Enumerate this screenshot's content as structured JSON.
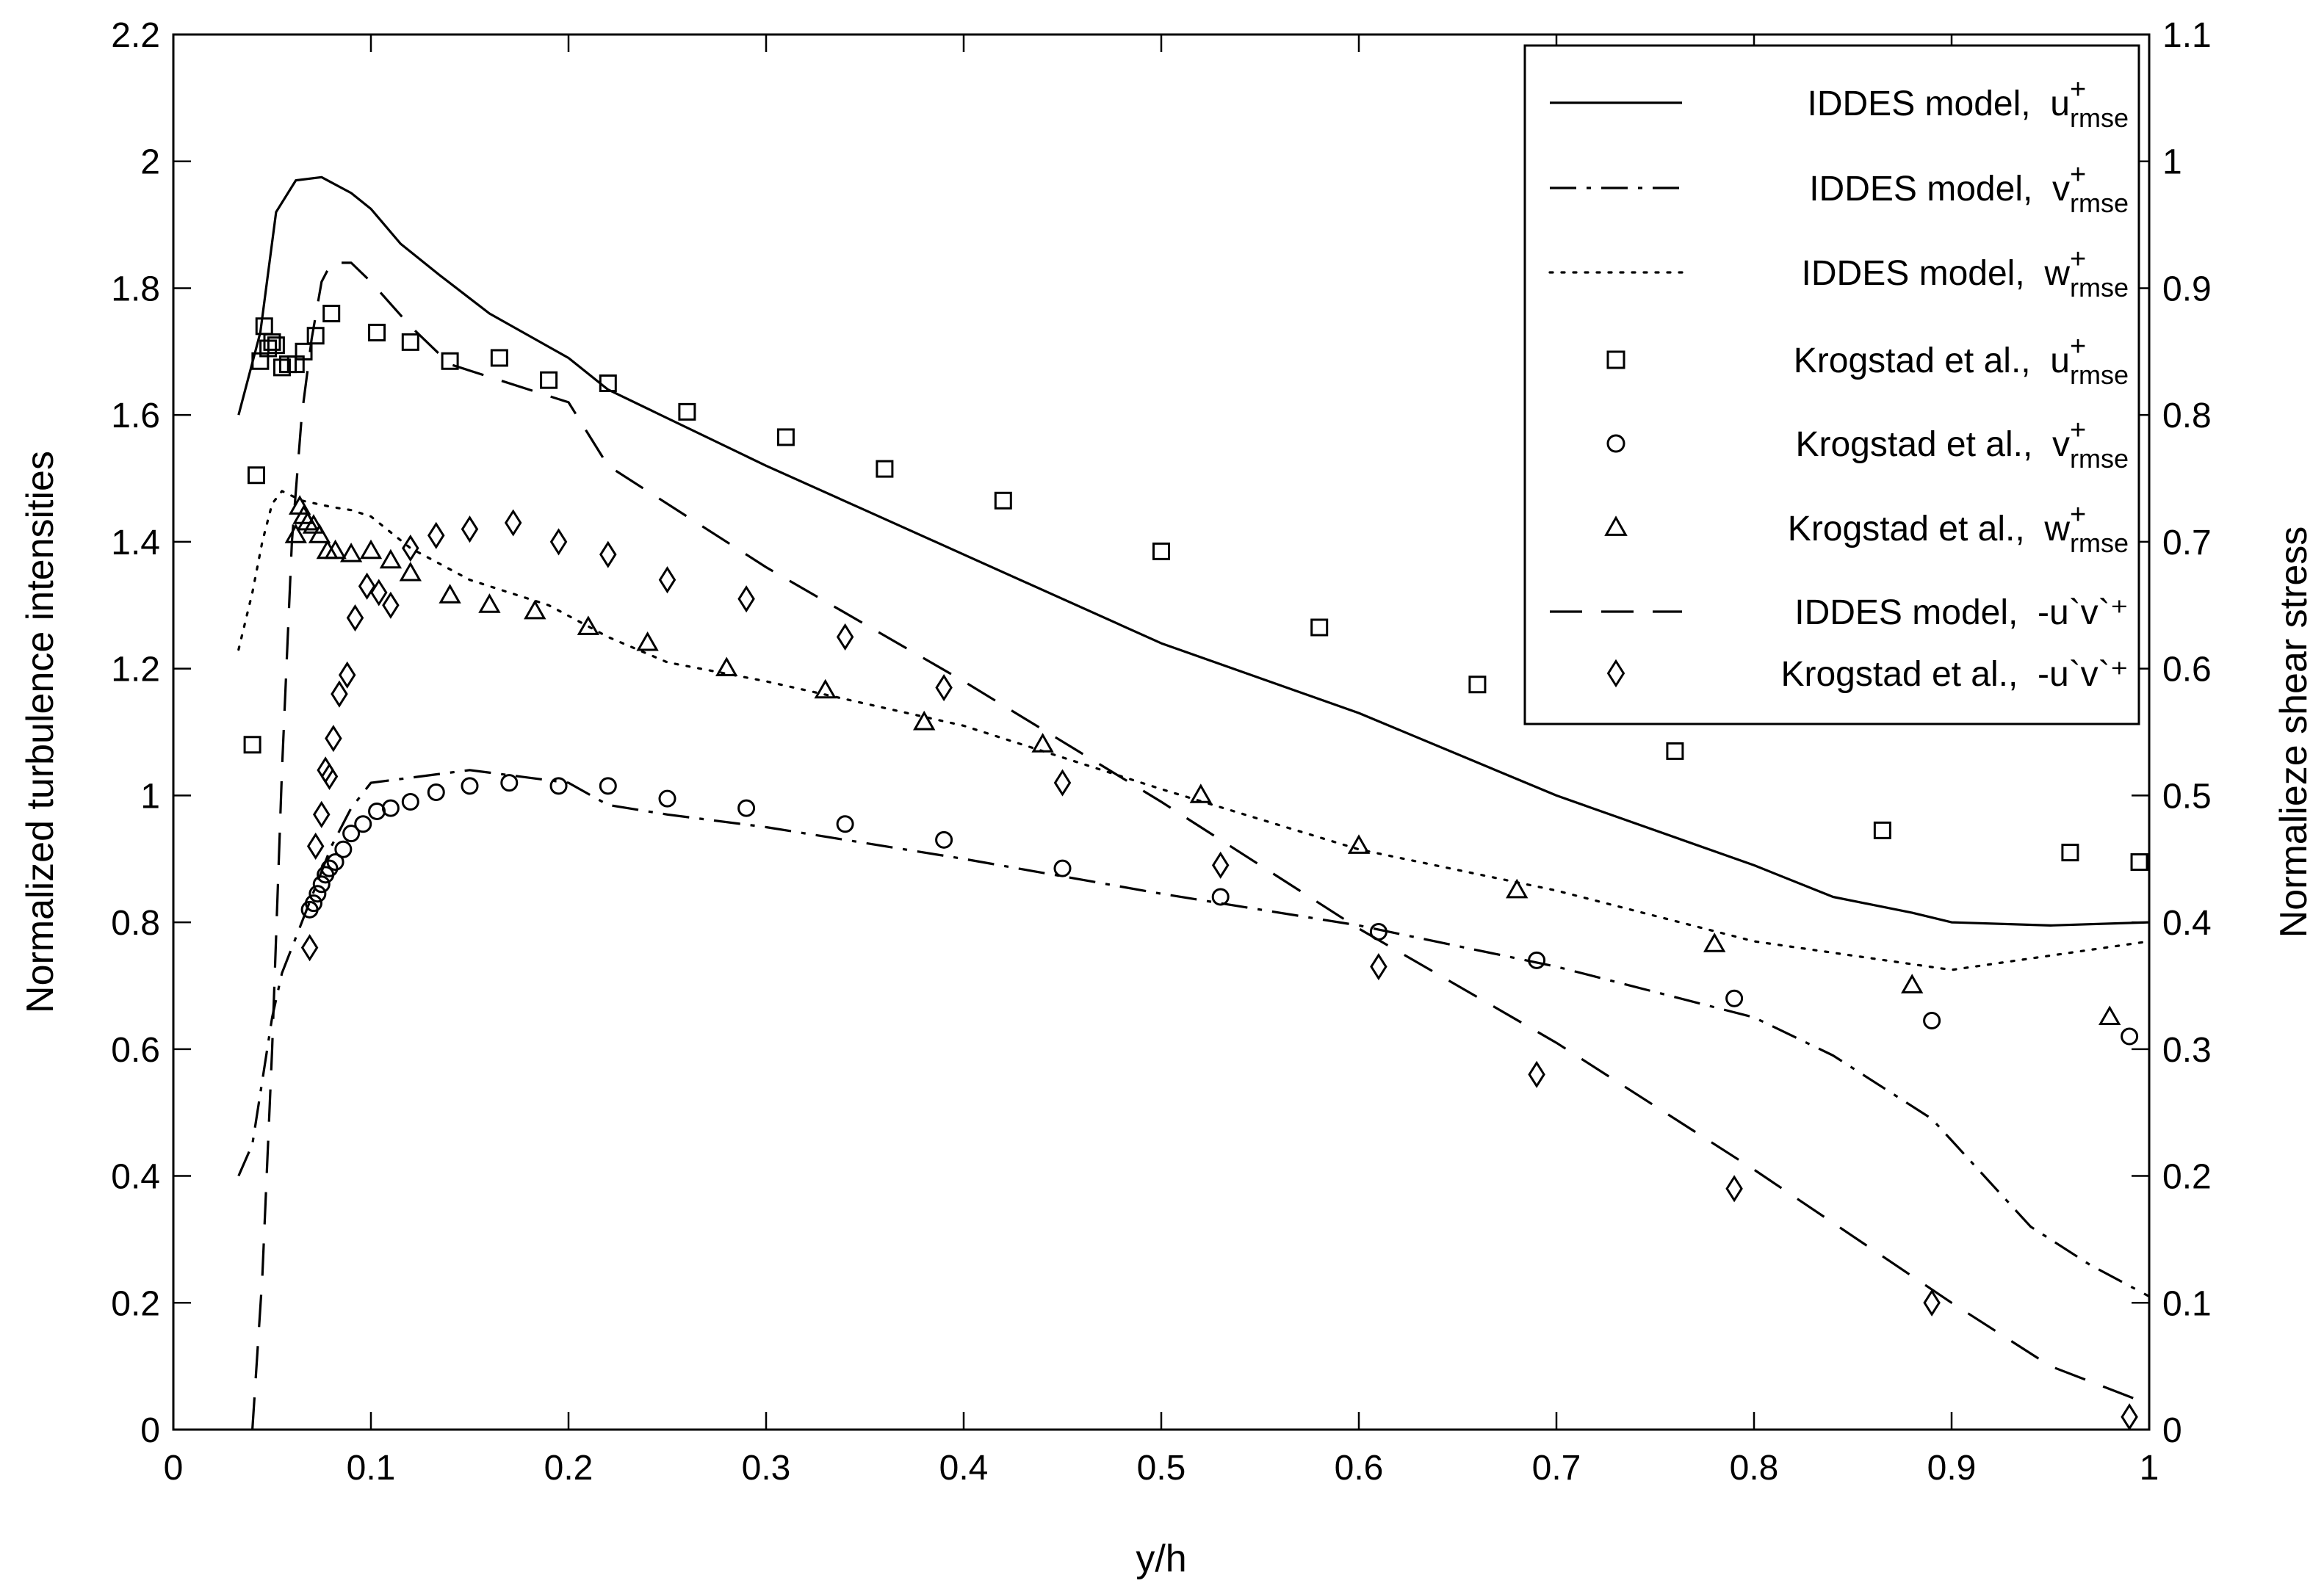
{
  "chart_data": {
    "type": "line",
    "xlabel": "y/h",
    "ylabel_left": "Normalized turbulence intensities",
    "ylabel_right": "Normalieze shear stress",
    "xlim": [
      0,
      1
    ],
    "ylim_left": [
      0,
      2.2
    ],
    "ylim_right": [
      0,
      1.1
    ],
    "xticks": [
      "0",
      "0.1",
      "0.2",
      "0.3",
      "0.4",
      "0.5",
      "0.6",
      "0.7",
      "0.8",
      "0.9",
      "1"
    ],
    "yticks_left": [
      "0",
      "0.2",
      "0.4",
      "0.6",
      "0.8",
      "1",
      "1.2",
      "1.4",
      "1.6",
      "1.8",
      "2",
      "2.2"
    ],
    "yticks_right": [
      "0",
      "0.1",
      "0.2",
      "0.3",
      "0.4",
      "0.5",
      "0.6",
      "0.7",
      "0.8",
      "0.9",
      "1",
      "1.1"
    ],
    "legend_position": "top-right",
    "series": [
      {
        "name": "IDDES model, u+rmse",
        "prefix": "IDDES model,",
        "sym": "u",
        "sub": "rmse",
        "style": "solid",
        "axis": "left",
        "x": [
          0.033,
          0.044,
          0.052,
          0.062,
          0.075,
          0.09,
          0.1,
          0.115,
          0.135,
          0.16,
          0.2,
          0.22,
          0.3,
          0.35,
          0.4,
          0.5,
          0.6,
          0.7,
          0.8,
          0.84,
          0.88,
          0.9,
          0.95,
          1.0
        ],
        "y": [
          1.6,
          1.73,
          1.92,
          1.97,
          1.975,
          1.95,
          1.925,
          1.87,
          1.82,
          1.76,
          1.69,
          1.64,
          1.52,
          1.45,
          1.38,
          1.24,
          1.13,
          1.0,
          0.89,
          0.84,
          0.815,
          0.8,
          0.795,
          0.8
        ]
      },
      {
        "name": "IDDES model, v+rmse",
        "prefix": "IDDES model,",
        "sym": "v",
        "sub": "rmse",
        "style": "dashdot",
        "axis": "left",
        "x": [
          0.033,
          0.04,
          0.045,
          0.05,
          0.055,
          0.06,
          0.065,
          0.07,
          0.075,
          0.08,
          0.09,
          0.1,
          0.15,
          0.2,
          0.22,
          0.25,
          0.3,
          0.4,
          0.5,
          0.6,
          0.7,
          0.8,
          0.84,
          0.89,
          0.94,
          0.97,
          1.0
        ],
        "y": [
          0.4,
          0.45,
          0.55,
          0.65,
          0.72,
          0.76,
          0.8,
          0.84,
          0.88,
          0.92,
          0.98,
          1.02,
          1.04,
          1.02,
          0.985,
          0.97,
          0.95,
          0.9,
          0.845,
          0.795,
          0.73,
          0.65,
          0.59,
          0.49,
          0.32,
          0.26,
          0.21
        ]
      },
      {
        "name": "IDDES model, w+rmse",
        "prefix": "IDDES model,",
        "sym": "w",
        "sub": "rmse",
        "style": "dotted",
        "axis": "left",
        "x": [
          0.033,
          0.04,
          0.045,
          0.05,
          0.055,
          0.065,
          0.08,
          0.09,
          0.1,
          0.12,
          0.15,
          0.19,
          0.22,
          0.25,
          0.3,
          0.4,
          0.5,
          0.6,
          0.7,
          0.8,
          0.9,
          1.0
        ],
        "y": [
          1.23,
          1.32,
          1.4,
          1.46,
          1.48,
          1.465,
          1.455,
          1.45,
          1.44,
          1.39,
          1.34,
          1.3,
          1.25,
          1.21,
          1.18,
          1.11,
          1.01,
          0.915,
          0.85,
          0.77,
          0.725,
          0.77
        ]
      },
      {
        "name": "Krogstad et al., u+rmse",
        "prefix": "Krogstad et al.,",
        "sym": "u",
        "sub": "rmse",
        "marker": "square",
        "axis": "left",
        "x": [
          0.04,
          0.042,
          0.044,
          0.046,
          0.048,
          0.05,
          0.052,
          0.055,
          0.058,
          0.062,
          0.066,
          0.072,
          0.08,
          0.103,
          0.12,
          0.14,
          0.165,
          0.19,
          0.22,
          0.26,
          0.31,
          0.36,
          0.42,
          0.5,
          0.58,
          0.66,
          0.76,
          0.865,
          0.96,
          0.995
        ],
        "y": [
          1.08,
          1.505,
          1.685,
          1.74,
          1.705,
          1.715,
          1.71,
          1.675,
          1.68,
          1.68,
          1.7,
          1.725,
          1.76,
          1.73,
          1.715,
          1.685,
          1.69,
          1.655,
          1.65,
          1.605,
          1.565,
          1.515,
          1.465,
          1.385,
          1.265,
          1.175,
          1.07,
          0.945,
          0.91,
          0.895
        ]
      },
      {
        "name": "Krogstad et al., v+rmse",
        "prefix": "Krogstad et al.,",
        "sym": "v",
        "sub": "rmse",
        "marker": "circle",
        "axis": "left",
        "x": [
          0.069,
          0.071,
          0.073,
          0.075,
          0.077,
          0.079,
          0.082,
          0.086,
          0.09,
          0.096,
          0.103,
          0.11,
          0.12,
          0.133,
          0.15,
          0.17,
          0.195,
          0.22,
          0.25,
          0.29,
          0.34,
          0.39,
          0.45,
          0.53,
          0.61,
          0.69,
          0.79,
          0.89,
          0.99
        ],
        "y": [
          0.82,
          0.83,
          0.845,
          0.86,
          0.875,
          0.885,
          0.895,
          0.915,
          0.94,
          0.955,
          0.975,
          0.98,
          0.99,
          1.005,
          1.015,
          1.02,
          1.015,
          1.015,
          0.995,
          0.98,
          0.955,
          0.93,
          0.885,
          0.84,
          0.785,
          0.74,
          0.68,
          0.645,
          0.62
        ]
      },
      {
        "name": "Krogstad et al., w+rmse",
        "prefix": "Krogstad et al.,",
        "sym": "w",
        "sub": "rmse",
        "marker": "triangle",
        "axis": "left",
        "x": [
          0.062,
          0.064,
          0.066,
          0.068,
          0.071,
          0.074,
          0.078,
          0.082,
          0.09,
          0.1,
          0.11,
          0.12,
          0.14,
          0.16,
          0.183,
          0.21,
          0.24,
          0.28,
          0.33,
          0.38,
          0.44,
          0.52,
          0.6,
          0.68,
          0.78,
          0.88,
          0.98
        ],
        "y": [
          1.41,
          1.455,
          1.44,
          1.43,
          1.425,
          1.41,
          1.385,
          1.385,
          1.38,
          1.385,
          1.37,
          1.35,
          1.315,
          1.3,
          1.29,
          1.265,
          1.24,
          1.2,
          1.165,
          1.115,
          1.08,
          1.0,
          0.92,
          0.85,
          0.765,
          0.7,
          0.65
        ]
      },
      {
        "name": "IDDES model, -u`v`+",
        "prefix": "IDDES model,",
        "plain": "-u`v`⁺",
        "style": "dashed",
        "axis": "right",
        "x": [
          0.04,
          0.045,
          0.05,
          0.055,
          0.06,
          0.065,
          0.07,
          0.075,
          0.08,
          0.09,
          0.1,
          0.12,
          0.14,
          0.2,
          0.22,
          0.3,
          0.4,
          0.5,
          0.6,
          0.7,
          0.8,
          0.9,
          0.95,
          1.0
        ],
        "y": [
          0.0,
          0.12,
          0.3,
          0.52,
          0.7,
          0.8,
          0.86,
          0.905,
          0.92,
          0.92,
          0.905,
          0.87,
          0.84,
          0.81,
          0.76,
          0.68,
          0.59,
          0.495,
          0.395,
          0.305,
          0.205,
          0.1,
          0.05,
          0.02
        ]
      },
      {
        "name": "Krogstad et al., -u`v`+",
        "prefix": "Krogstad et al.,",
        "plain": "-u`v`⁺",
        "marker": "diamond",
        "axis": "right",
        "x": [
          0.069,
          0.072,
          0.075,
          0.077,
          0.079,
          0.081,
          0.084,
          0.088,
          0.092,
          0.098,
          0.104,
          0.11,
          0.12,
          0.133,
          0.15,
          0.172,
          0.195,
          0.22,
          0.25,
          0.29,
          0.34,
          0.39,
          0.45,
          0.53,
          0.61,
          0.69,
          0.79,
          0.89,
          0.99
        ],
        "y": [
          0.38,
          0.46,
          0.485,
          0.52,
          0.515,
          0.545,
          0.58,
          0.595,
          0.64,
          0.665,
          0.66,
          0.65,
          0.695,
          0.705,
          0.71,
          0.715,
          0.7,
          0.69,
          0.67,
          0.655,
          0.625,
          0.585,
          0.51,
          0.445,
          0.365,
          0.28,
          0.19,
          0.1,
          0.01
        ]
      }
    ]
  }
}
